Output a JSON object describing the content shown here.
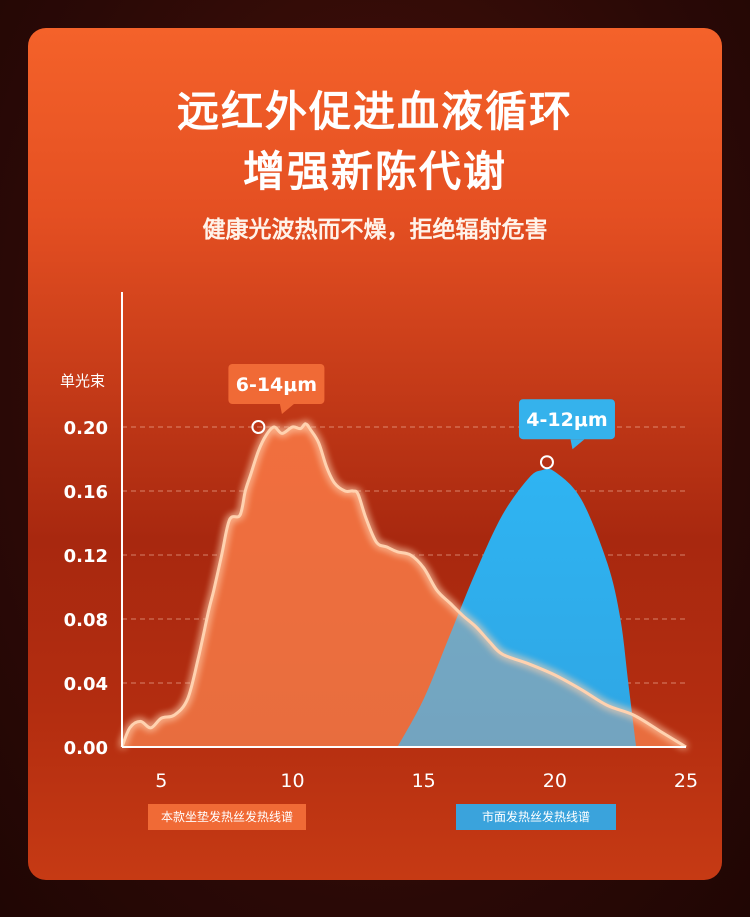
{
  "headline": {
    "line1": "远红外促进血液循环",
    "line2": "增强新陈代谢",
    "subtitle": "健康光波热而不燥，拒绝辐射危害"
  },
  "chart_data": {
    "type": "area",
    "ylabel": "单光束",
    "xlabel": "",
    "xlim": [
      3.5,
      25
    ],
    "ylim": [
      0,
      0.2
    ],
    "x_ticks": [
      "5",
      "10",
      "15",
      "20",
      "25"
    ],
    "y_ticks": [
      "0.00",
      "0.04",
      "0.08",
      "0.12",
      "0.16",
      "0.20"
    ],
    "grid": "horizontal dashed",
    "series": [
      {
        "name": "本款坐垫发热丝发热线谱",
        "color": "#f06a36",
        "x": [
          3.5,
          3.8,
          4.2,
          4.6,
          5.0,
          5.5,
          6.0,
          6.4,
          6.8,
          7.0,
          7.3,
          7.6,
          8.0,
          8.2,
          8.4,
          8.7,
          9.0,
          9.3,
          9.6,
          10.0,
          10.3,
          10.5,
          10.7,
          11.0,
          11.3,
          11.6,
          12.0,
          12.3,
          12.5,
          12.8,
          13.2,
          13.6,
          14.0,
          14.5,
          15.0,
          15.5,
          16.0,
          16.5,
          17.0,
          17.5,
          18.0,
          19.0,
          20.0,
          21.0,
          22.0,
          23.0,
          24.0,
          24.5,
          25.0
        ],
        "y": [
          0.0,
          0.012,
          0.016,
          0.012,
          0.018,
          0.02,
          0.03,
          0.055,
          0.085,
          0.098,
          0.12,
          0.142,
          0.145,
          0.16,
          0.17,
          0.185,
          0.195,
          0.2,
          0.196,
          0.2,
          0.199,
          0.202,
          0.198,
          0.19,
          0.175,
          0.165,
          0.16,
          0.16,
          0.158,
          0.143,
          0.128,
          0.125,
          0.122,
          0.12,
          0.112,
          0.098,
          0.09,
          0.082,
          0.075,
          0.066,
          0.058,
          0.052,
          0.045,
          0.036,
          0.026,
          0.02,
          0.01,
          0.005,
          0.0
        ]
      },
      {
        "name": "市面发热丝发热线谱",
        "color": "#35b2ec",
        "x": [
          14.0,
          15.0,
          16.0,
          17.0,
          18.0,
          19.0,
          19.5,
          20.0,
          21.0,
          22.0,
          22.5,
          22.8,
          23.1
        ],
        "y": [
          0.0,
          0.03,
          0.07,
          0.11,
          0.145,
          0.168,
          0.173,
          0.172,
          0.155,
          0.115,
          0.08,
          0.04,
          0.0
        ]
      }
    ],
    "annotations": [
      {
        "text": "6-14μm",
        "x": 8.7,
        "y": 0.2,
        "color": "#f06a36"
      },
      {
        "text": "4-12μm",
        "x": 19.7,
        "y": 0.178,
        "color": "#35b2ec"
      }
    ]
  }
}
